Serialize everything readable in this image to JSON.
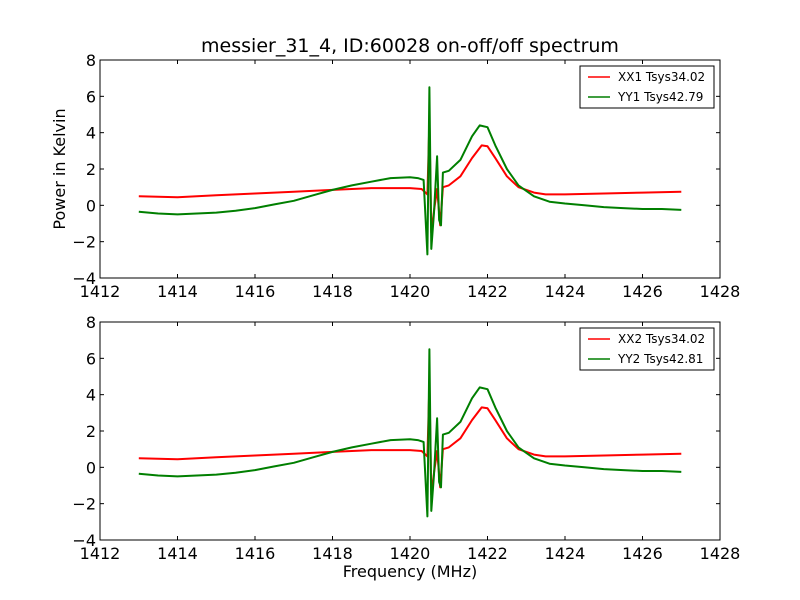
{
  "chart_data": {
    "type": "line",
    "title": "messier_31_4, ID:60028 on-off/off spectrum",
    "xlabel": "Frequency (MHz)",
    "ylabel": "Power in Kelvin",
    "panels": [
      {
        "xlim": [
          1412,
          1428
        ],
        "ylim": [
          -4,
          8
        ],
        "xticks": [
          1412,
          1414,
          1416,
          1418,
          1420,
          1422,
          1424,
          1426,
          1428
        ],
        "yticks": [
          -4,
          -2,
          0,
          2,
          4,
          6,
          8
        ],
        "xtick_labels": [
          "1412",
          "1414",
          "1416",
          "1418",
          "1420",
          "1422",
          "1424",
          "1426",
          "1428"
        ],
        "ytick_labels": [
          "−4",
          "−2",
          "0",
          "2",
          "4",
          "6",
          "8"
        ],
        "legend_position": "top-right",
        "series": [
          {
            "name": "XX1 Tsys34.02",
            "color": "#ff0000",
            "x": [
              1413,
              1414,
              1415,
              1416,
              1417,
              1418,
              1419,
              1420,
              1420.3,
              1420.45,
              1420.5,
              1420.55,
              1420.62,
              1420.7,
              1420.78,
              1420.85,
              1421,
              1421.3,
              1421.6,
              1421.85,
              1422,
              1422.2,
              1422.5,
              1422.8,
              1423.2,
              1423.5,
              1424,
              1425,
              1426,
              1427
            ],
            "y": [
              0.5,
              0.45,
              0.55,
              0.65,
              0.75,
              0.85,
              0.95,
              0.95,
              0.9,
              0.6,
              4.6,
              -1.5,
              -0.3,
              0.9,
              -1.1,
              1.0,
              1.1,
              1.6,
              2.6,
              3.3,
              3.25,
              2.6,
              1.6,
              1.0,
              0.7,
              0.6,
              0.6,
              0.65,
              0.7,
              0.75
            ]
          },
          {
            "name": "YY1 Tsys42.79",
            "color": "#007f00",
            "x": [
              1413,
              1413.5,
              1414,
              1414.5,
              1415,
              1415.5,
              1416,
              1416.5,
              1417,
              1417.5,
              1418,
              1418.5,
              1419,
              1419.5,
              1420,
              1420.2,
              1420.35,
              1420.45,
              1420.5,
              1420.55,
              1420.62,
              1420.7,
              1420.75,
              1420.8,
              1420.85,
              1421,
              1421.3,
              1421.6,
              1421.8,
              1422,
              1422.2,
              1422.5,
              1422.8,
              1423.2,
              1423.6,
              1424,
              1424.5,
              1425,
              1425.5,
              1426,
              1426.5,
              1427
            ],
            "y": [
              -0.35,
              -0.45,
              -0.5,
              -0.45,
              -0.4,
              -0.3,
              -0.15,
              0.05,
              0.25,
              0.55,
              0.85,
              1.1,
              1.3,
              1.5,
              1.55,
              1.5,
              1.4,
              -2.7,
              6.5,
              -2.4,
              -0.4,
              2.7,
              -0.8,
              -1.1,
              1.8,
              1.9,
              2.5,
              3.8,
              4.4,
              4.3,
              3.3,
              2.0,
              1.1,
              0.5,
              0.2,
              0.1,
              0.0,
              -0.1,
              -0.15,
              -0.2,
              -0.2,
              -0.25
            ]
          }
        ]
      },
      {
        "xlim": [
          1412,
          1428
        ],
        "ylim": [
          -4,
          8
        ],
        "xticks": [
          1412,
          1414,
          1416,
          1418,
          1420,
          1422,
          1424,
          1426,
          1428
        ],
        "yticks": [
          -4,
          -2,
          0,
          2,
          4,
          6,
          8
        ],
        "xtick_labels": [
          "1412",
          "1414",
          "1416",
          "1418",
          "1420",
          "1422",
          "1424",
          "1426",
          "1428"
        ],
        "ytick_labels": [
          "−4",
          "−2",
          "0",
          "2",
          "4",
          "6",
          "8"
        ],
        "legend_position": "top-right",
        "series": [
          {
            "name": "XX2 Tsys34.02",
            "color": "#ff0000",
            "x": [
              1413,
              1414,
              1415,
              1416,
              1417,
              1418,
              1419,
              1420,
              1420.3,
              1420.45,
              1420.5,
              1420.55,
              1420.62,
              1420.7,
              1420.78,
              1420.85,
              1421,
              1421.3,
              1421.6,
              1421.85,
              1422,
              1422.2,
              1422.5,
              1422.8,
              1423.2,
              1423.5,
              1424,
              1425,
              1426,
              1427
            ],
            "y": [
              0.5,
              0.45,
              0.55,
              0.65,
              0.75,
              0.85,
              0.95,
              0.95,
              0.9,
              0.6,
              4.6,
              -1.5,
              -0.3,
              0.9,
              -1.1,
              1.0,
              1.1,
              1.6,
              2.6,
              3.3,
              3.25,
              2.6,
              1.6,
              1.0,
              0.7,
              0.6,
              0.6,
              0.65,
              0.7,
              0.75
            ]
          },
          {
            "name": "YY2 Tsys42.81",
            "color": "#007f00",
            "x": [
              1413,
              1413.5,
              1414,
              1414.5,
              1415,
              1415.5,
              1416,
              1416.5,
              1417,
              1417.5,
              1418,
              1418.5,
              1419,
              1419.5,
              1420,
              1420.2,
              1420.35,
              1420.45,
              1420.5,
              1420.55,
              1420.62,
              1420.7,
              1420.75,
              1420.8,
              1420.85,
              1421,
              1421.3,
              1421.6,
              1421.8,
              1422,
              1422.2,
              1422.5,
              1422.8,
              1423.2,
              1423.6,
              1424,
              1424.5,
              1425,
              1425.5,
              1426,
              1426.5,
              1427
            ],
            "y": [
              -0.35,
              -0.45,
              -0.5,
              -0.45,
              -0.4,
              -0.3,
              -0.15,
              0.05,
              0.25,
              0.55,
              0.85,
              1.1,
              1.3,
              1.5,
              1.55,
              1.5,
              1.4,
              -2.7,
              6.5,
              -2.4,
              -0.4,
              2.7,
              -0.8,
              -1.1,
              1.8,
              1.9,
              2.5,
              3.8,
              4.4,
              4.3,
              3.3,
              2.0,
              1.1,
              0.5,
              0.2,
              0.1,
              0.0,
              -0.1,
              -0.15,
              -0.2,
              -0.2,
              -0.25
            ]
          }
        ]
      }
    ]
  }
}
